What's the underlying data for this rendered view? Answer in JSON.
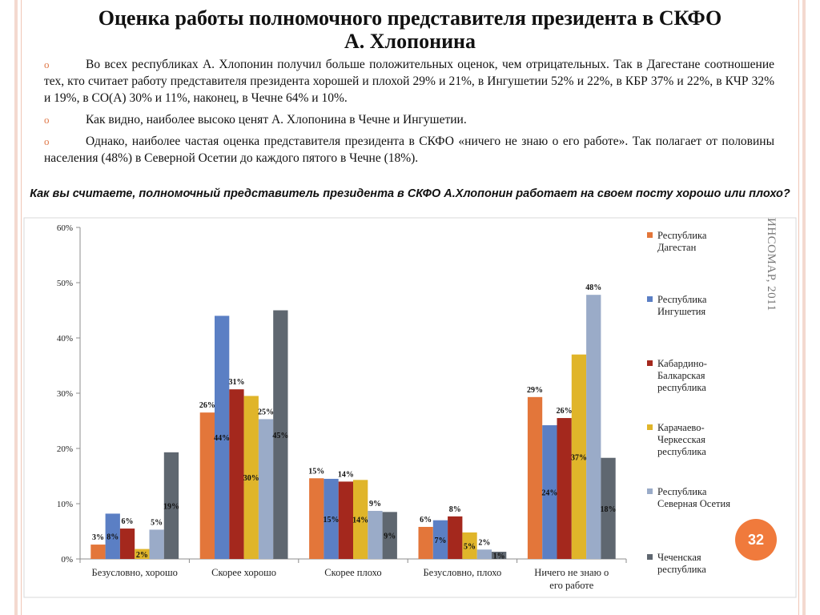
{
  "slide": {
    "title_line1": "Оценка работы полномочного представителя президента в СКФО",
    "title_line2": "А. Хлопонина",
    "bullets": [
      "Во всех республиках А. Хлопонин получил больше положительных оценок, чем отрицательных. Так в Дагестане соотношение тех, кто считает работу представителя президента хорошей и плохой 29% и 21%, в Ингушетии 52% и 22%, в КБР 37% и 22%, в КЧР 32% и 19%, в СО(А) 30% и 11%, наконец, в Чечне 64% и 10%.",
      "Как видно, наиболее высоко ценят А. Хлопонина в Чечне и Ингушетии.",
      "Однако, наиболее частая оценка представителя президента в СКФО «ничего не знаю о его работе». Так полагает от половины населения (48%) в Северной Осетии до каждого пятого в Чечне (18%)."
    ],
    "bullet_mark": "o",
    "question": "Как вы считаете, полномочный представитель президента в СКФО А.Хлопонин работает на своем посту хорошо или плохо?",
    "side_note": "ИНСОМАР, 2011",
    "page_number": "32"
  },
  "chart_data": {
    "type": "bar",
    "categories": [
      "Безусловно, хорошо",
      "Скорее хорошо",
      "Скорее плохо",
      "Безусловно, плохо",
      "Ничего не знаю о его работе"
    ],
    "category_lines": [
      [
        "Безусловно, хорошо"
      ],
      [
        "Скорее хорошо"
      ],
      [
        "Скорее плохо"
      ],
      [
        "Безусловно, плохо"
      ],
      [
        "Ничего не знаю о",
        "его работе"
      ]
    ],
    "ylim": [
      0,
      60
    ],
    "yticks": [
      "0%",
      "10%",
      "20%",
      "30%",
      "40%",
      "50%",
      "60%"
    ],
    "grid": false,
    "legend_position": "right",
    "series": [
      {
        "name": "Республика Дагестан",
        "legend_lines": [
          "Республика",
          "Дагестан"
        ],
        "color": "#e3763a",
        "values": [
          2.6,
          26.5,
          14.6,
          5.8,
          29.3
        ],
        "labels": [
          "3%",
          "26%",
          "15%",
          "6%",
          "29%"
        ]
      },
      {
        "name": "Республика Ингушетия",
        "legend_lines": [
          "Республика",
          "Ингушетия"
        ],
        "color": "#5b7fc4",
        "values": [
          8.2,
          44.0,
          14.5,
          7.0,
          24.2
        ],
        "labels": [
          "8%",
          "44%",
          "15%",
          "7%",
          "24%"
        ]
      },
      {
        "name": "Кабардино-Балкарская республика",
        "legend_lines": [
          "Кабардино-",
          "Балкарская",
          "республика"
        ],
        "color": "#a4281d",
        "values": [
          5.5,
          30.7,
          14.0,
          7.7,
          25.5
        ],
        "labels": [
          "6%",
          "31%",
          "14%",
          "8%",
          "26%"
        ]
      },
      {
        "name": "Карачаево-Черкесская республика",
        "legend_lines": [
          "Карачаево-",
          "Черкесская",
          "республика"
        ],
        "color": "#e0b52a",
        "values": [
          1.8,
          29.5,
          14.3,
          4.8,
          37.0
        ],
        "labels": [
          "2%",
          "30%",
          "14%",
          "5%",
          "37%"
        ]
      },
      {
        "name": "Республика Северная Осетия",
        "legend_lines": [
          "Республика",
          "Северная Осетия"
        ],
        "color": "#9aabc8",
        "values": [
          5.3,
          25.3,
          8.7,
          1.7,
          47.8
        ],
        "labels": [
          "5%",
          "25%",
          "9%",
          "2%",
          "48%"
        ]
      },
      {
        "name": "Чеченская республика",
        "legend_lines": [
          "Чеченская",
          "республика"
        ],
        "color": "#5f6770",
        "values": [
          19.3,
          45.0,
          8.5,
          1.3,
          18.3
        ],
        "labels": [
          "19%",
          "45%",
          "9%",
          "1%",
          "18%"
        ]
      }
    ]
  }
}
